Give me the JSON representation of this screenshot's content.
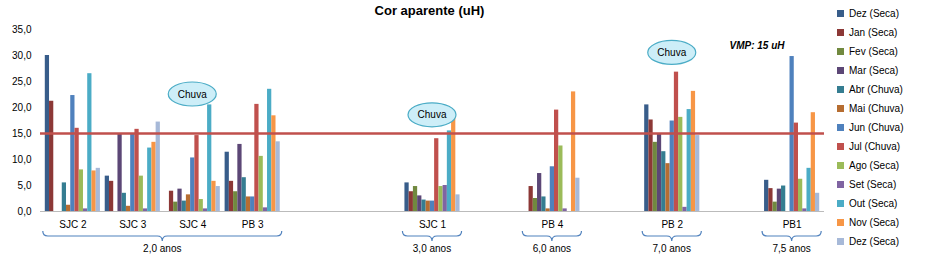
{
  "chart_data": {
    "type": "bar",
    "title": "Cor aparente (uH)",
    "categories": [
      "SJC 2",
      "SJC 3",
      "SJC 4",
      "PB 3",
      null,
      null,
      "SJC 1",
      null,
      "PB 4",
      null,
      "PB 2",
      null,
      "PB1"
    ],
    "series": [
      {
        "name": "Dez (Seca)",
        "color": "#385D8A",
        "values": [
          30.0,
          6.8,
          null,
          11.4,
          null,
          null,
          5.5,
          null,
          null,
          null,
          20.5,
          null,
          6.0
        ]
      },
      {
        "name": "Jan (Seca)",
        "color": "#8C3836",
        "values": [
          21.2,
          5.8,
          3.9,
          5.8,
          null,
          null,
          3.8,
          null,
          4.8,
          null,
          17.6,
          null,
          4.4
        ]
      },
      {
        "name": "Fev (Seca)",
        "color": "#71893F",
        "values": [
          null,
          null,
          1.8,
          3.8,
          null,
          null,
          4.8,
          null,
          2.5,
          null,
          13.3,
          null,
          1.8
        ]
      },
      {
        "name": "Mar (Seca)",
        "color": "#5C4776",
        "values": [
          null,
          15.0,
          4.3,
          12.9,
          null,
          null,
          3.0,
          null,
          7.3,
          null,
          15.0,
          null,
          4.3
        ]
      },
      {
        "name": "Abr (Chuva)",
        "color": "#357D91",
        "values": [
          5.5,
          3.5,
          2.0,
          6.5,
          null,
          null,
          2.2,
          null,
          2.8,
          null,
          11.5,
          null,
          4.9
        ]
      },
      {
        "name": "Mai  (Chuva)",
        "color": "#B66D31",
        "values": [
          1.2,
          1.0,
          3.2,
          2.8,
          null,
          null,
          2.0,
          null,
          0.5,
          null,
          9.2,
          null,
          null
        ]
      },
      {
        "name": "Jun  (Chuva)",
        "color": "#4F81BD",
        "values": [
          22.3,
          15.0,
          10.3,
          2.8,
          null,
          null,
          2.0,
          null,
          8.6,
          null,
          17.4,
          null,
          29.8
        ]
      },
      {
        "name": "Jul  (Chuva)",
        "color": "#C0504D",
        "values": [
          16.0,
          15.8,
          14.6,
          20.6,
          null,
          null,
          14.0,
          null,
          19.5,
          null,
          26.8,
          null,
          17.0
        ]
      },
      {
        "name": "Ago (Seca)",
        "color": "#9BBB59",
        "values": [
          8.0,
          6.8,
          2.3,
          10.6,
          null,
          null,
          4.8,
          null,
          12.6,
          null,
          18.1,
          null,
          6.2
        ]
      },
      {
        "name": "Set (Seca)",
        "color": "#8064A2",
        "values": [
          0.5,
          0.5,
          0.5,
          0.7,
          null,
          null,
          5.0,
          null,
          0.5,
          null,
          0.8,
          null,
          0.5
        ]
      },
      {
        "name": "Out (Seca)",
        "color": "#4BACC6",
        "values": [
          26.5,
          12.2,
          20.5,
          23.5,
          null,
          null,
          15.5,
          null,
          null,
          null,
          19.6,
          null,
          8.3
        ]
      },
      {
        "name": "Nov (Seca)",
        "color": "#F79646",
        "values": [
          7.8,
          13.3,
          5.8,
          18.4,
          null,
          null,
          18.3,
          null,
          23.0,
          null,
          23.1,
          null,
          19.0
        ]
      },
      {
        "name": "Dez (Seca)",
        "color": "#A7B9D8",
        "values": [
          8.3,
          17.2,
          4.8,
          13.4,
          null,
          null,
          3.2,
          null,
          6.4,
          null,
          14.6,
          null,
          3.5
        ]
      }
    ],
    "ylim": [
      0,
      35
    ],
    "yticks": [
      {
        "value": 0,
        "label": "0,0"
      },
      {
        "value": 5,
        "label": "5,0"
      },
      {
        "value": 10,
        "label": "10,0"
      },
      {
        "value": 15,
        "label": "15,0"
      },
      {
        "value": 20,
        "label": "20,0"
      },
      {
        "value": 25,
        "label": "25,0"
      },
      {
        "value": 30,
        "label": "30,0"
      },
      {
        "value": 35,
        "label": "35,0"
      }
    ],
    "grid": false,
    "legend": "right",
    "reference_line": {
      "value": 15,
      "label": "VMP: 15 uH",
      "color": "#C0504D"
    },
    "annotations": [
      {
        "text": "Chuva",
        "category": "SJC 4",
        "y": 22.5
      },
      {
        "text": "Chuva",
        "category": "SJC 1",
        "y": 18.5
      },
      {
        "text": "Chuva",
        "category": "PB 2",
        "y": 30.5
      }
    ],
    "groups": [
      {
        "label": "2,0 anos",
        "categories": [
          "SJC 2",
          "SJC 3",
          "SJC 4",
          "PB 3"
        ]
      },
      {
        "label": "3,0 anos",
        "categories": [
          "SJC 1"
        ]
      },
      {
        "label": "6,0 anos",
        "categories": [
          "PB 4"
        ]
      },
      {
        "label": "7,0 anos",
        "categories": [
          "PB 2"
        ]
      },
      {
        "label": "7,5 anos",
        "categories": [
          "PB1"
        ]
      }
    ]
  }
}
